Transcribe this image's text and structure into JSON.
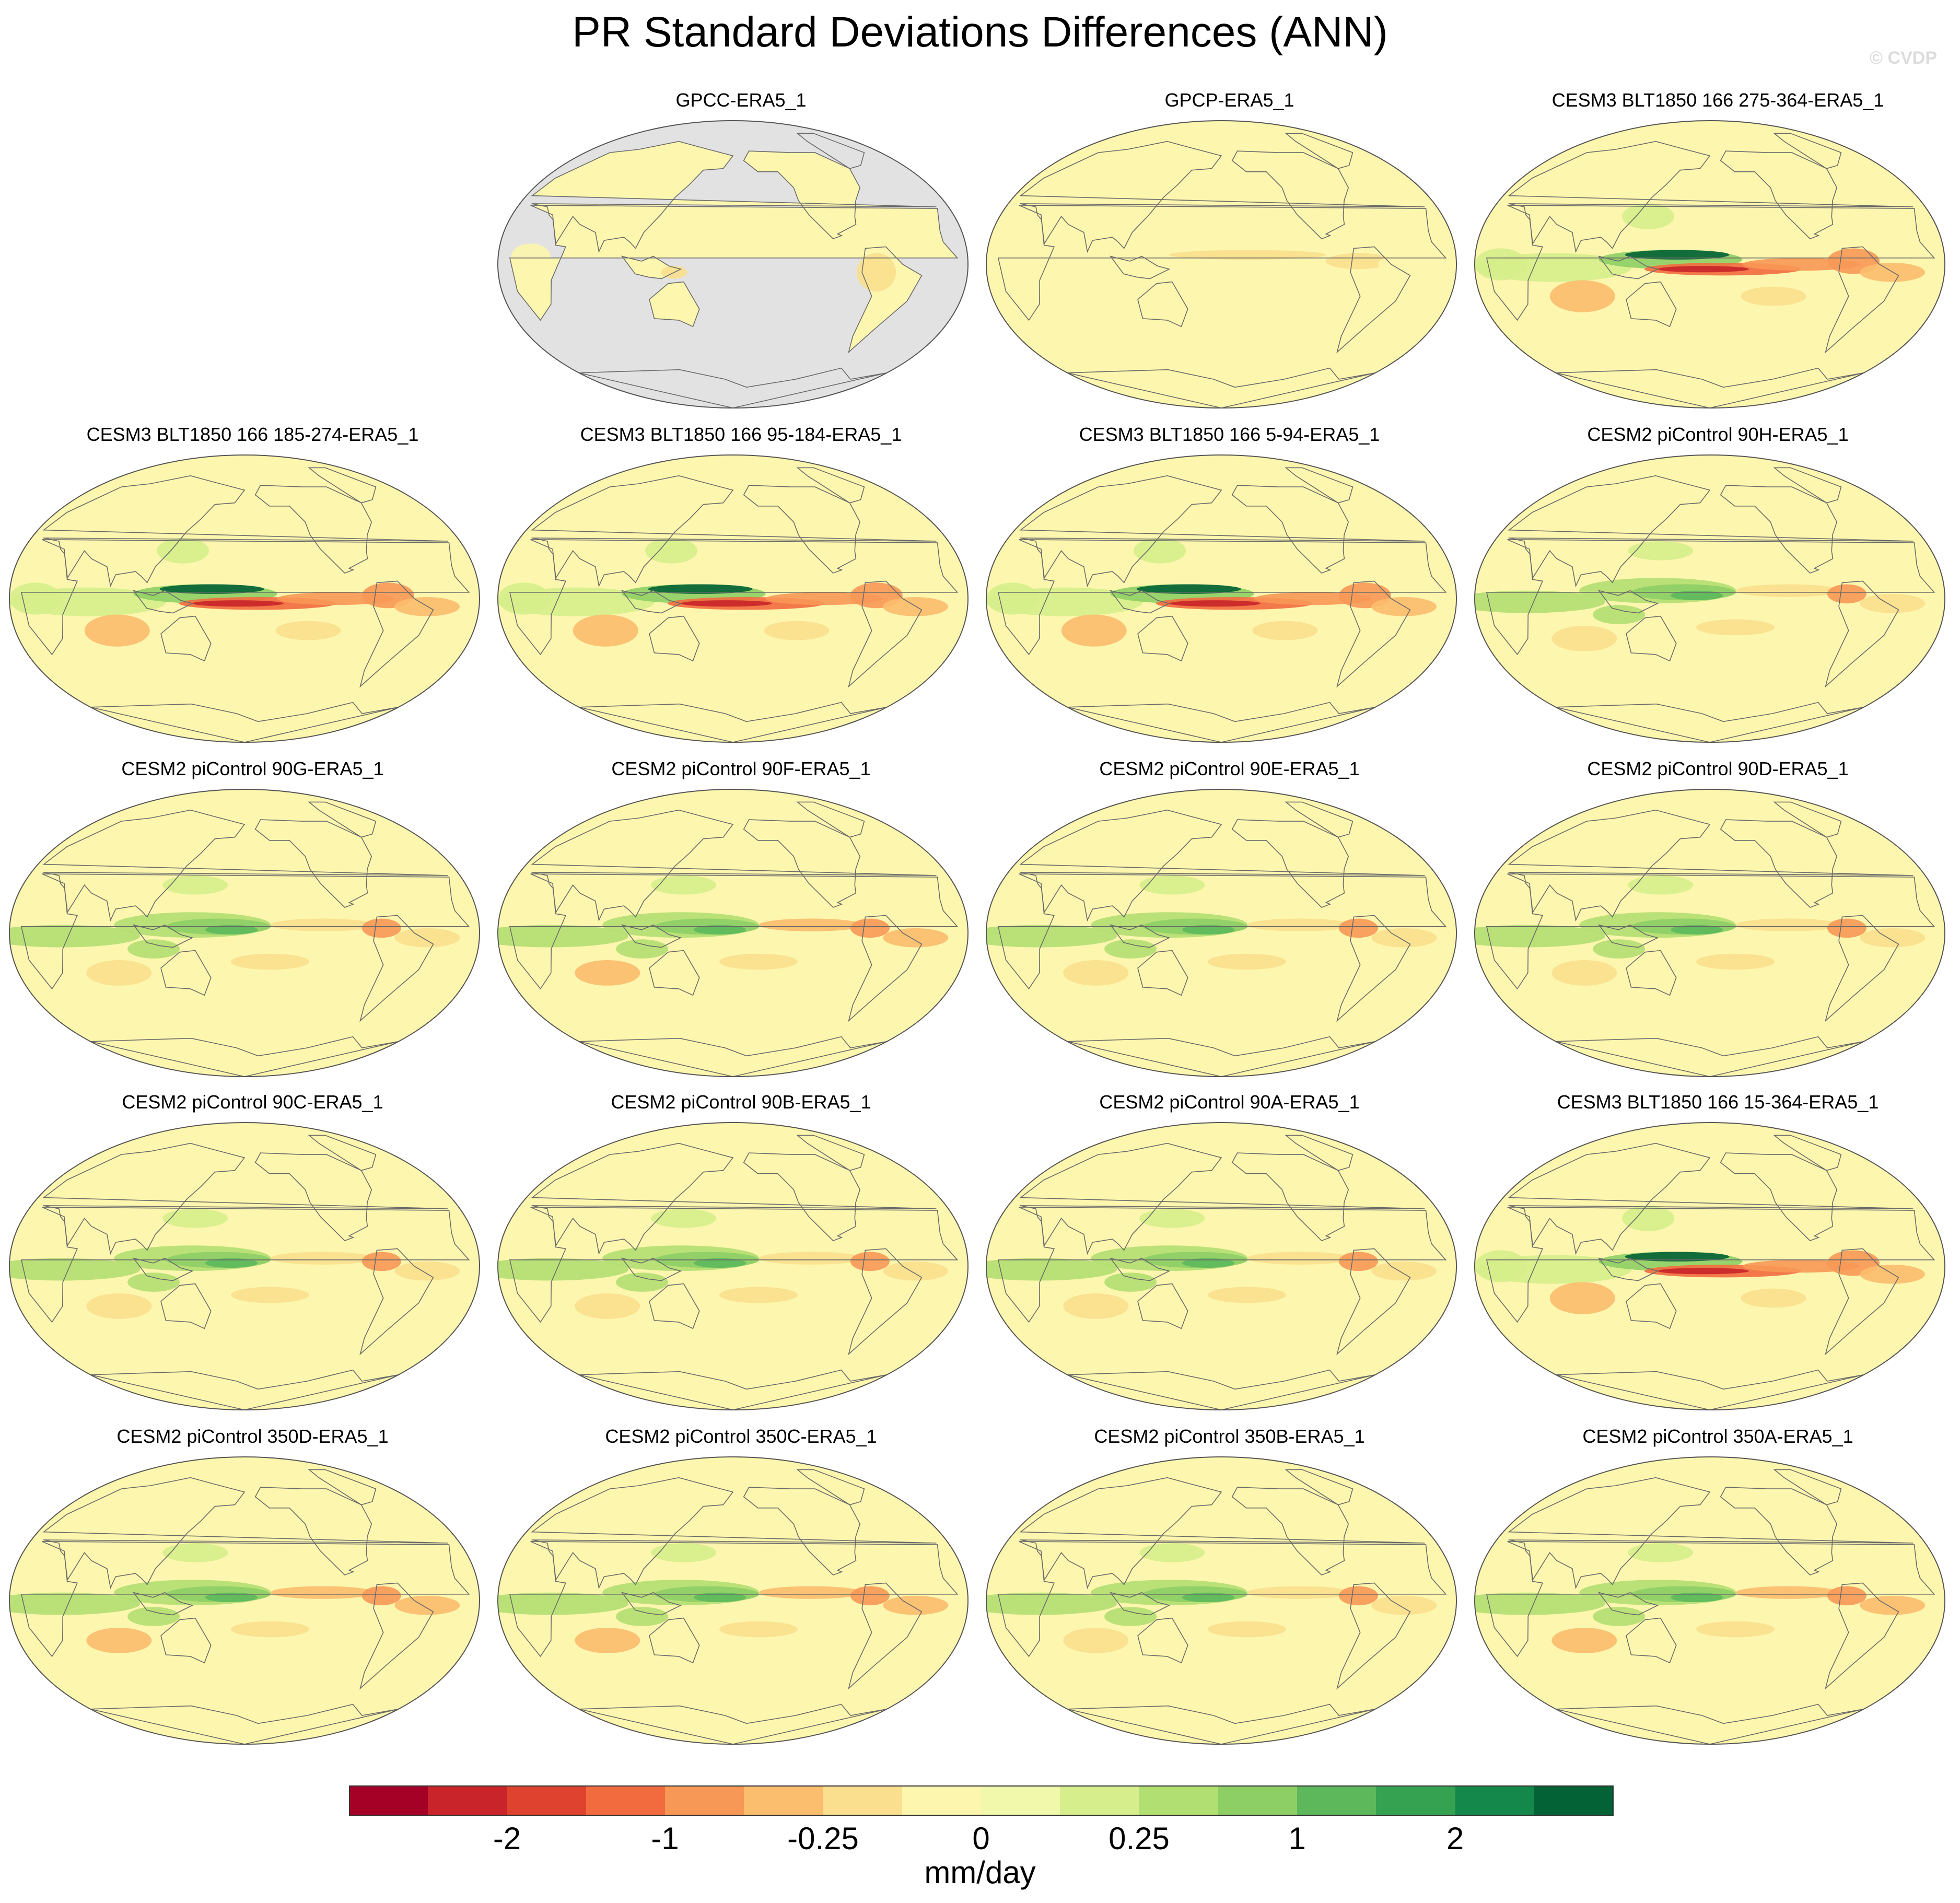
{
  "figure": {
    "title": "PR Standard Deviations Differences (ANN)",
    "watermark": "© CVDP"
  },
  "chart_data": {
    "type": "map-panels",
    "title": "PR Standard Deviations Differences (ANN)",
    "projection": "Robinson-like, Pacific-centered",
    "units": "mm/day",
    "colorbar": {
      "colors": [
        "#a50026",
        "#c9242a",
        "#df432f",
        "#f26b3f",
        "#f89857",
        "#fbbd6e",
        "#fae08e",
        "#fdf6ae",
        "#f1f8ab",
        "#d6ee8b",
        "#b2df72",
        "#8ecf65",
        "#5db85c",
        "#34a250",
        "#14884a",
        "#036236"
      ],
      "tick_labels": [
        "-2",
        "-1",
        "-0.25",
        "0",
        "0.25",
        "1",
        "2"
      ],
      "tick_boundary_index": [
        2,
        4,
        6,
        8,
        10,
        12,
        14
      ]
    },
    "panels": [
      {
        "title": "GPCC-ERA5_1",
        "pattern": "land-only",
        "amp": 0.4
      },
      {
        "title": "GPCP-ERA5_1",
        "pattern": "obs",
        "amp": 0.5
      },
      {
        "title": "CESM3 BLT1850 166 275-364-ERA5_1",
        "pattern": "cesm3",
        "amp": 1.0
      },
      {
        "title": "CESM3 BLT1850 166 185-274-ERA5_1",
        "pattern": "cesm3",
        "amp": 1.0
      },
      {
        "title": "CESM3 BLT1850 166 95-184-ERA5_1",
        "pattern": "cesm3",
        "amp": 1.0
      },
      {
        "title": "CESM3 BLT1850 166 5-94-ERA5_1",
        "pattern": "cesm3",
        "amp": 1.0
      },
      {
        "title": "CESM2 piControl 90H-ERA5_1",
        "pattern": "cesm2",
        "amp": 0.8
      },
      {
        "title": "CESM2 piControl 90G-ERA5_1",
        "pattern": "cesm2",
        "amp": 0.8
      },
      {
        "title": "CESM2 piControl 90F-ERA5_1",
        "pattern": "cesm2",
        "amp": 0.85
      },
      {
        "title": "CESM2 piControl 90E-ERA5_1",
        "pattern": "cesm2",
        "amp": 0.8
      },
      {
        "title": "CESM2 piControl 90D-ERA5_1",
        "pattern": "cesm2",
        "amp": 0.8
      },
      {
        "title": "CESM2 piControl 90C-ERA5_1",
        "pattern": "cesm2",
        "amp": 0.8
      },
      {
        "title": "CESM2 piControl 90B-ERA5_1",
        "pattern": "cesm2",
        "amp": 0.8
      },
      {
        "title": "CESM2 piControl 90A-ERA5_1",
        "pattern": "cesm2",
        "amp": 0.8
      },
      {
        "title": "CESM3 BLT1850 166 15-364-ERA5_1",
        "pattern": "cesm3",
        "amp": 0.95
      },
      {
        "title": "CESM2 piControl 350D-ERA5_1",
        "pattern": "cesm2",
        "amp": 0.85
      },
      {
        "title": "CESM2 piControl 350C-ERA5_1",
        "pattern": "cesm2",
        "amp": 0.85
      },
      {
        "title": "CESM2 piControl 350B-ERA5_1",
        "pattern": "cesm2",
        "amp": 0.8
      },
      {
        "title": "CESM2 piControl 350A-ERA5_1",
        "pattern": "cesm2",
        "amp": 0.85
      }
    ]
  }
}
